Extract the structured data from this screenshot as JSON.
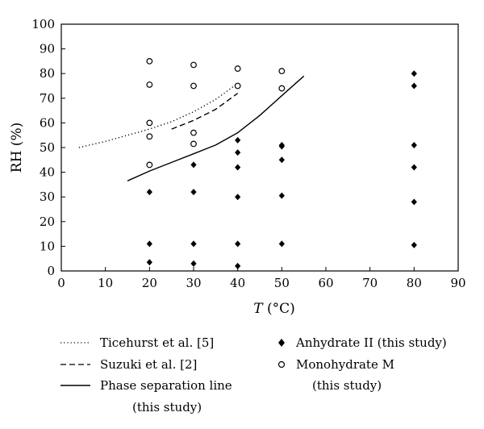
{
  "chart_data": {
    "type": "scatter",
    "xlabel_symbol": "T",
    "xlabel_unit": " (°C)",
    "ylabel": "RH (%)",
    "xlim": [
      0,
      90
    ],
    "ylim": [
      0,
      100
    ],
    "xticks": [
      0,
      10,
      20,
      30,
      40,
      50,
      60,
      70,
      80,
      90
    ],
    "yticks": [
      0,
      10,
      20,
      30,
      40,
      50,
      60,
      70,
      80,
      90,
      100
    ],
    "grid": false,
    "legend_position": "below",
    "series": [
      {
        "name": "Ticehurst et al. [5]",
        "kind": "line",
        "style": "dotted",
        "x": [
          4,
          10,
          15,
          20,
          25,
          30,
          35,
          40
        ],
        "y": [
          50,
          52.5,
          55,
          57.5,
          60.5,
          64.5,
          69.5,
          76
        ]
      },
      {
        "name": "Suzuki et al. [2]",
        "kind": "line",
        "style": "dashed",
        "x": [
          25,
          30,
          35,
          40
        ],
        "y": [
          57.5,
          61,
          65.5,
          72
        ]
      },
      {
        "name": "Phase separation line",
        "name_line2": "(this study)",
        "kind": "line",
        "style": "solid",
        "x": [
          15,
          20,
          25,
          30,
          35,
          40,
          45,
          50,
          55
        ],
        "y": [
          36.5,
          40.5,
          44,
          47.5,
          51,
          56,
          63,
          71,
          79
        ]
      },
      {
        "name": "Anhydrate II (this study)",
        "kind": "marker",
        "marker": "diamond",
        "x": [
          20,
          20,
          20,
          30,
          30,
          30,
          30,
          40,
          40,
          40,
          40,
          40,
          40,
          50,
          50,
          50,
          50,
          50,
          80,
          80,
          80,
          80,
          80,
          80
        ],
        "y": [
          3.5,
          11,
          32,
          3,
          11,
          32,
          43,
          2,
          11,
          30,
          42,
          48,
          53,
          11,
          30.5,
          45,
          50.5,
          51,
          10.5,
          28,
          42,
          51,
          75,
          80
        ]
      },
      {
        "name": "Monohydrate M",
        "name_line2": "(this study)",
        "kind": "marker",
        "marker": "open-circle",
        "x": [
          20,
          20,
          20,
          20,
          20,
          30,
          30,
          30,
          30,
          40,
          40,
          50,
          50
        ],
        "y": [
          43,
          54.5,
          60,
          75.5,
          85,
          51.5,
          56,
          75,
          83.5,
          75,
          82,
          74,
          81
        ]
      }
    ]
  }
}
